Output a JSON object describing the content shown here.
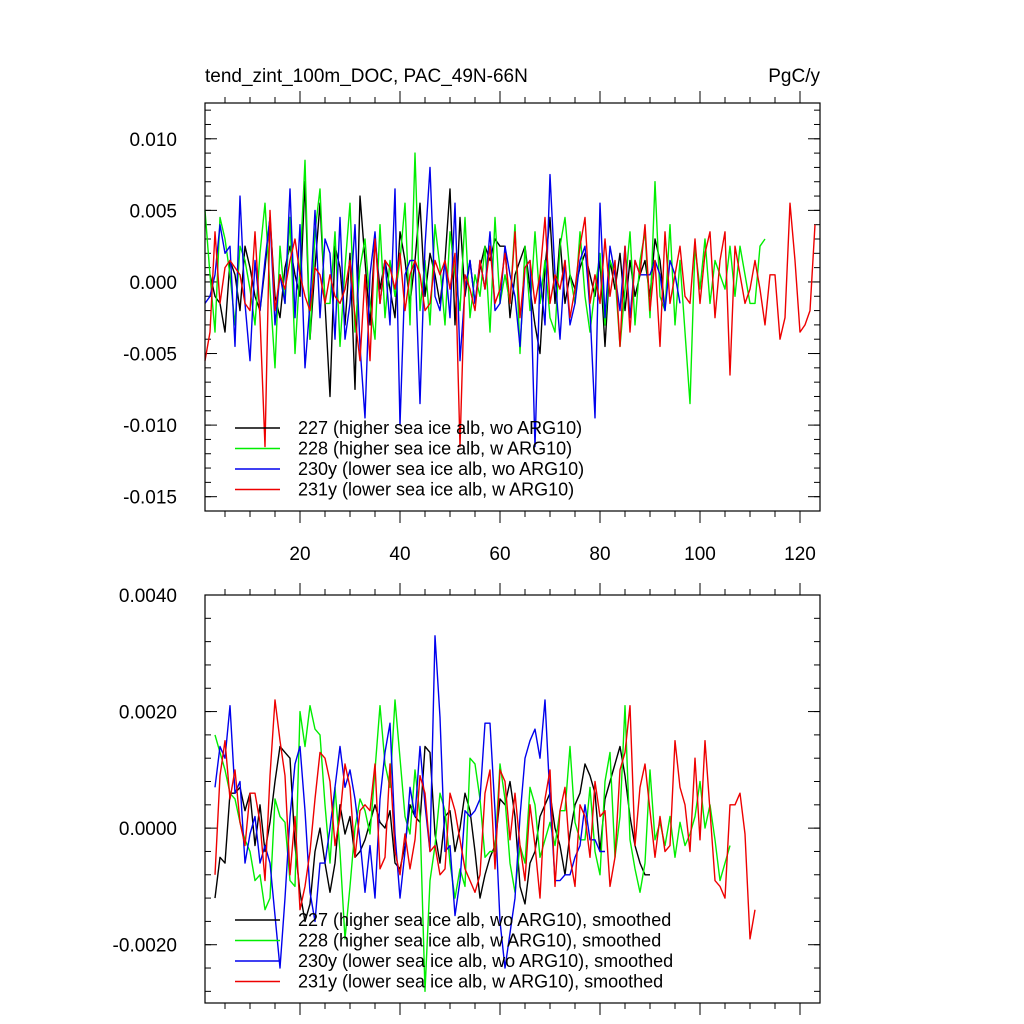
{
  "colors": {
    "black": "#000000",
    "green": "#00ee00",
    "blue": "#0000ee",
    "red": "#ee0000"
  },
  "chart_data": [
    {
      "type": "line",
      "title": "tend_zint_100m_DOC, PAC_49N-66N",
      "units": "PgC/y",
      "xlim": [
        1,
        124
      ],
      "ylim": [
        -0.016,
        0.0125
      ],
      "xticks": [
        "20",
        "40",
        "60",
        "80",
        "100",
        "120"
      ],
      "xtick_values": [
        20,
        40,
        60,
        80,
        100,
        120
      ],
      "yticks": [
        "0.010",
        "0.005",
        "0.000",
        "-0.005",
        "-0.010",
        "-0.015"
      ],
      "ytick_values": [
        0.01,
        0.005,
        0.0,
        -0.005,
        -0.01,
        -0.015
      ],
      "series": [
        {
          "name": "227 (higher sea ice alb, wo ARG10)",
          "color": "#000000",
          "x_start": 1,
          "values": [
            0.0005,
            0.0005,
            -0.001,
            -0.0015,
            -0.0035,
            0.0015,
            0.0005,
            -0.002,
            0.0025,
            0.001,
            -0.001,
            -0.002,
            0.001,
            0.0045,
            -0.001,
            -0.0025,
            0.001,
            0.0025,
            0.0005,
            -0.001,
            0.007,
            -0.004,
            0.001,
            0.0055,
            -0.0015,
            -0.008,
            0.0025,
            0.001,
            -0.003,
            0.002,
            -0.0075,
            0.006,
            0.0015,
            -0.003,
            0.003,
            -0.0005,
            0.0015,
            -0.0005,
            -0.0025,
            0.0035,
            0.0015,
            -0.0015,
            0.0015,
            0.0055,
            -0.001,
            0.002,
            0.0005,
            -0.0015,
            0.0015,
            0.0065,
            -0.003,
            0.0045,
            -0.001,
            0.0015,
            -0.0015,
            0.001,
            0.0025,
            0.0015,
            0.003,
            0.0025,
            0.0025,
            -0.0025,
            0.0005,
            0.0015,
            0.0025,
            -0.0005,
            -0.003,
            -0.005,
            0.001,
            0.0045,
            -0.0015,
            0.003,
            -0.0015,
            0.0005,
            -0.0005,
            0.001,
            0.002,
            0.0005,
            -0.001,
            0.0015,
            -0.0045,
            0.0015,
            -0.0005,
            0.002,
            -0.002,
            0.0015,
            -0.001,
            0.0005,
            0.0015,
            -0.001,
            0.003,
            0.0015,
            -0.002
          ]
        },
        {
          "name": "228 (higher sea ice alb, w ARG10)",
          "color": "#00ee00",
          "x_start": 1,
          "values": [
            0.005,
            0.0005,
            -0.0035,
            0.0045,
            0.003,
            0.0005,
            -0.003,
            0.0025,
            0.0015,
            -0.0005,
            -0.003,
            0.002,
            0.0055,
            -0.0005,
            -0.006,
            0.0025,
            -0.0015,
            0.0045,
            -0.005,
            0.001,
            0.0085,
            -0.004,
            0.0035,
            0.0065,
            -0.0015,
            -0.0015,
            0.0035,
            -0.0045,
            0.001,
            0.0055,
            -0.0035,
            0.001,
            0.003,
            -0.0015,
            -0.004,
            0.004,
            -0.0025,
            0.0015,
            -0.001,
            0.0015,
            0.0055,
            -0.003,
            0.009,
            -0.002,
            0.0015,
            -0.003,
            0.004,
            0.001,
            -0.003,
            0.0035,
            0.0005,
            -0.002,
            0.0045,
            -0.0025,
            0.0005,
            -0.001,
            0.0025,
            -0.0035,
            0.0045,
            -0.0015,
            0.0005,
            -0.0015,
            0.004,
            -0.005,
            0.0025,
            -0.002,
            0.0035,
            -0.0015,
            0.0015,
            -0.0025,
            -0.0035,
            0.0025,
            0.0045,
            0.0005,
            -0.0015,
            0.0035,
            -0.001,
            -0.0035,
            -0.0005,
            0.002,
            -0.003,
            0.0015,
            0.0005,
            -0.0045,
            -0.0005,
            0.0035,
            -0.003,
            0.0015,
            0.0035,
            -0.0025,
            0.007,
            -0.001,
            -0.002,
            0.004,
            -0.003,
            0.0015,
            -0.0035,
            -0.0085,
            0.0025,
            -0.0005,
            0.003,
            -0.0015,
            0.0015,
            0.0005,
            -0.0005,
            0.0025,
            -0.001,
            0.0025,
            0.0005,
            -0.0015,
            -0.0015,
            0.0025,
            0.003
          ]
        },
        {
          "name": "230y (lower sea ice alb, wo ARG10)",
          "color": "#0000ee",
          "x_start": 1,
          "values": [
            -0.0015,
            -0.001,
            0.0005,
            0.004,
            0.002,
            0.0025,
            -0.0045,
            0.006,
            -0.0015,
            -0.0055,
            0.0015,
            -0.002,
            0.0015,
            0.0045,
            -0.003,
            0.0005,
            -0.0015,
            0.0065,
            -0.0025,
            0.004,
            -0.006,
            -0.0015,
            0.005,
            -0.0025,
            0.003,
            0.002,
            -0.004,
            0.0045,
            -0.004,
            -0.0015,
            0.004,
            -0.0045,
            -0.0095,
            0.0005,
            0.0035,
            -0.0015,
            0.0015,
            -0.003,
            0.0065,
            -0.01,
            0.0005,
            0.0015,
            0.0015,
            -0.0085,
            0.0025,
            0.008,
            -0.001,
            -0.002,
            0.0015,
            -0.0025,
            0.0055,
            -0.0055,
            -0.0005,
            0.0015,
            -0.0015,
            0.0015,
            -0.0005,
            0.0035,
            -0.002,
            -0.0015,
            0.0025,
            0.0005,
            -0.001,
            -0.0045,
            0.001,
            0.0015,
            -0.0115,
            0.0005,
            -0.003,
            0.0075,
            0.0005,
            -0.004,
            0.0015,
            -0.003,
            -0.0015,
            0.0015,
            0.0025,
            -0.002,
            -0.0095,
            0.0055,
            -0.0025,
            0.0025,
            0.0005,
            -0.002,
            0.0025,
            -0.0025,
            0.0015,
            0.0005,
            0.0005,
            0.0005,
            0.0015,
            0.0005,
            -0.002,
            0.0015,
            0.0005,
            -0.0015
          ]
        },
        {
          "name": "231y (lower sea ice alb, w ARG10)",
          "color": "#ee0000",
          "x_start": 1,
          "values": [
            -0.0055,
            -0.0035,
            0.0035,
            -0.0015,
            0.001,
            0.0015,
            0.001,
            0.0005,
            -0.0015,
            -0.002,
            0.0035,
            -0.0025,
            -0.0115,
            0.005,
            -0.002,
            0.0005,
            -0.0005,
            0.0015,
            0.003,
            0.0005,
            -0.001,
            -0.002,
            0.001,
            0.0005,
            -0.0015,
            0.0005,
            -0.001,
            -0.0015,
            -0.0005,
            0.0015,
            -0.0025,
            -0.0055,
            0.0005,
            -0.0055,
            0.003,
            -0.0015,
            0.0015,
            0.001,
            -0.0005,
            0.002,
            -0.002,
            0.0005,
            0.0015,
            0.0005,
            -0.002,
            -0.0015,
            0.0015,
            0.0005,
            0.0015,
            -0.0005,
            0.002,
            -0.0115,
            0.0005,
            -0.0005,
            -0.002,
            0.0015,
            -0.0005,
            0.0025,
            -0.0015,
            -0.0005,
            0.002,
            -0.0015,
            0.0035,
            -0.0025,
            0.001,
            0.0015,
            -0.0015,
            0.0005,
            0.0045,
            -0.0015,
            0.0005,
            -0.0005,
            0.0015,
            -0.0025,
            -0.0005,
            0.0025,
            0.0045,
            -0.0015,
            0.0005,
            -0.0015,
            0.003,
            -0.001,
            0.0015,
            -0.0045,
            0.0025,
            -0.0035,
            0.0015,
            0.0005,
            0.004,
            -0.002,
            0.0015,
            -0.0045,
            0.0035,
            -0.0015,
            0.0005,
            0.0025,
            -0.001,
            -0.0015,
            0.003,
            -0.0015,
            0.002,
            0.0035,
            -0.0025,
            0.0015,
            0.0035,
            -0.0065,
            0.0025,
            0.0005,
            -0.0015,
            -0.0005,
            0.0015,
            -0.0005,
            -0.003,
            0.0005,
            0.0005,
            -0.004,
            -0.0025,
            0.0055,
            0.0015,
            -0.0035,
            -0.003,
            -0.002,
            0.004
          ]
        }
      ]
    },
    {
      "type": "line",
      "title": "",
      "xlim": [
        1,
        124
      ],
      "ylim": [
        -0.003,
        0.004
      ],
      "xticks": [],
      "xtick_values": [
        20,
        40,
        60,
        80,
        100,
        120
      ],
      "yticks": [
        "0.0040",
        "0.0020",
        "0.0000",
        "-0.0020"
      ],
      "ytick_values": [
        0.004,
        0.002,
        0.0,
        -0.002
      ],
      "series": [
        {
          "name": "227 (higher sea ice alb, wo ARG10), smoothed",
          "color": "#000000",
          "x_start": 3,
          "values": [
            -0.0012,
            -0.0005,
            -0.0006,
            0.0006,
            0.0006,
            0.0007,
            0.0003,
            0.0006,
            -0.0003,
            0.0004,
            -0.0004,
            0.0001,
            0.0008,
            0.0014,
            0.0013,
            0.0012,
            -0.0003,
            -0.0011,
            -0.0016,
            -0.0013,
            -0.0004,
            0.0,
            -0.0006,
            -0.0011,
            -0.0006,
            0.0004,
            -0.0001,
            0.0002,
            -0.0005,
            -0.0004,
            -0.0002,
            0.0001,
            0.0004,
            0.0001,
            0.0,
            0.0003,
            -0.0006,
            -0.0007,
            -0.0003,
            0.0004,
            0.0002,
            0.0001,
            0.0014,
            0.0013,
            -0.0001,
            -0.0006,
            0.0002,
            0.0003,
            -0.0004,
            0.0,
            0.0006,
            0.0003,
            -0.0004,
            -0.0012,
            -0.0008,
            -0.0005,
            -0.0003,
            0.0005,
            0.0004,
            0.0008,
            0.0002,
            -0.001,
            -0.0013,
            -0.0006,
            -0.0004,
            0.0002,
            0.0004,
            0.0006,
            0.0,
            -0.0003,
            -0.0008,
            -0.0001,
            0.0004,
            0.0006,
            0.0011,
            0.0009,
            0.0006,
            -0.0004,
            0.0005,
            0.0008,
            0.0011,
            0.0014,
            0.0009,
            0.0002,
            -0.0003,
            -0.0006,
            -0.0008,
            -0.0008
          ]
        },
        {
          "name": "228 (higher sea ice alb, w ARG10), smoothed",
          "color": "#00ee00",
          "x_start": 3,
          "values": [
            0.0016,
            0.0013,
            0.001,
            0.0006,
            0.0005,
            0.0001,
            -0.0002,
            -0.0004,
            -0.0009,
            -0.0008,
            -0.0014,
            -0.0012,
            0.0005,
            0.0002,
            0.0001,
            -0.0009,
            -0.001,
            0.002,
            0.0014,
            0.0021,
            0.0017,
            0.0016,
            0.0004,
            -0.0006,
            0.0007,
            -0.0004,
            -0.0019,
            -0.001,
            0.0,
            0.0005,
            0.0003,
            -0.0001,
            0.001,
            0.0021,
            0.0011,
            0.0007,
            0.0022,
            0.0012,
            0.0002,
            -0.0001,
            0.001,
            0.0002,
            -0.0028,
            -0.0009,
            -0.0003,
            0.0006,
            0.0003,
            -0.0006,
            -0.0012,
            -0.0007,
            -0.001,
            0.0012,
            0.0011,
            0.0005,
            -0.0005,
            -0.0004,
            -0.0004,
            0.0011,
            0.0005,
            -0.0006,
            -0.0011,
            -0.0003,
            -0.0006,
            0.0007,
            0.0004,
            -0.0005,
            -0.0002,
            0.0001,
            -0.0003,
            0.0003,
            0.0003,
            0.0014,
            0.0001,
            -0.0002,
            -0.0002,
            0.0007,
            -0.0004,
            -0.0008,
            0.0008,
            0.0013,
            -0.0005,
            0.0002,
            0.0021,
            -0.0002,
            -0.0007,
            -0.0011,
            -0.0006,
            0.001,
            -0.0002,
            0.0001,
            -0.0003,
            0.0002,
            -0.0005,
            0.0001,
            -0.0003,
            -0.0001,
            0.0002,
            0.0008,
            0.0,
            0.0004,
            -0.0002,
            -0.0009,
            -0.0006,
            -0.0003
          ]
        },
        {
          "name": "230y (lower sea ice alb, wo ARG10), smoothed",
          "color": "#0000ee",
          "x_start": 3,
          "values": [
            0.0007,
            0.0014,
            0.0012,
            0.0021,
            0.0006,
            0.0008,
            -0.0006,
            -0.0001,
            0.0002,
            -0.0006,
            -0.0003,
            -0.0006,
            -0.0015,
            -0.0024,
            -0.0012,
            0.0002,
            0.0011,
            0.0014,
            0.0003,
            -0.0011,
            -0.0016,
            -0.0006,
            -0.0006,
            0.0,
            0.0007,
            0.0014,
            0.0007,
            0.001,
            0.0005,
            -0.0002,
            -0.0011,
            -0.0003,
            -0.0012,
            0.0005,
            0.0013,
            0.0018,
            -0.0001,
            -0.0012,
            -0.0004,
            0.0007,
            0.0002,
            0.0014,
            0.0004,
            -0.0004,
            0.0033,
            0.0019,
            -0.0004,
            -0.0003,
            -0.0015,
            -0.0009,
            0.0003,
            0.0002,
            0.0003,
            0.0005,
            0.0018,
            0.0018,
            0.0003,
            -0.0016,
            -0.0024,
            -0.0018,
            -0.0012,
            0.0002,
            0.0012,
            0.0015,
            0.0017,
            0.0012,
            0.0022,
            0.0005,
            -0.0009,
            -0.0009,
            -0.0008,
            -0.0008,
            -0.0005,
            -0.0003,
            0.0004,
            -0.0002,
            -0.0002,
            -0.0004,
            -0.0004
          ]
        },
        {
          "name": "231y (lower sea ice alb, w ARG10), smoothed",
          "color": "#ee0000",
          "x_start": 3,
          "values": [
            -0.0008,
            0.0009,
            0.0015,
            0.0005,
            0.001,
            0.0001,
            -0.0003,
            0.0006,
            0.0006,
            0.0001,
            -0.0009,
            0.0009,
            0.0022,
            0.0015,
            0.0009,
            -0.0008,
            0.0002,
            -0.0014,
            -0.001,
            -0.0004,
            0.0005,
            0.0013,
            0.0012,
            0.0008,
            -0.0003,
            0.0002,
            0.0011,
            0.0007,
            -0.0005,
            0.0003,
            0.0004,
            0.0003,
            0.0011,
            -0.0007,
            -0.0005,
            0.0011,
            -0.0004,
            -0.0008,
            -0.0001,
            -0.0007,
            -0.0002,
            0.0009,
            0.0006,
            -0.0004,
            -0.0003,
            -0.0008,
            -0.0007,
            0.0006,
            0.0003,
            -0.0002,
            -0.0007,
            -0.0009,
            -0.0011,
            -0.0008,
            0.0006,
            0.001,
            -0.0007,
            0.001,
            0.0008,
            -0.0002,
            0.0006,
            -0.0003,
            -0.0009,
            0.0004,
            -0.0003,
            -0.0012,
            0.0005,
            0.001,
            -0.001,
            0.0003,
            0.0007,
            -0.0005,
            -0.001,
            0.0004,
            0.0002,
            -0.0005,
            0.0008,
            0.0002,
            0.0003,
            -0.001,
            -0.0005,
            0.001,
            0.0013,
            0.0021,
            -0.0003,
            0.0007,
            0.0011,
            0.0003,
            -0.0005,
            0.0002,
            -0.0004,
            -0.0003,
            0.0015,
            0.0007,
            0.0004,
            -0.0004,
            0.0012,
            -0.0002,
            0.0015,
            0.0003,
            -0.0009,
            -0.001,
            -0.0012,
            0.0004,
            0.0004,
            0.0006,
            -0.0001,
            -0.0019,
            -0.0014
          ]
        }
      ]
    }
  ]
}
